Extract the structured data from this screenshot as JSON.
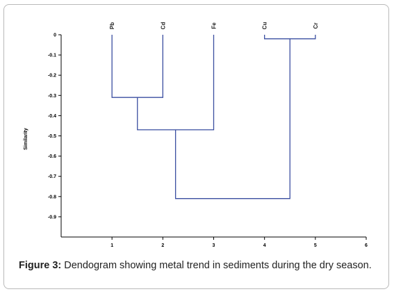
{
  "caption": {
    "label": "Figure 3:",
    "text": "Dendogram showing metal trend in sediments during the dry season."
  },
  "chart_data": {
    "type": "dendrogram",
    "ylabel": "Similarity",
    "leaves": [
      "Pb",
      "Cd",
      "Fe",
      "Cu",
      "Cr"
    ],
    "x_ticks": [
      "1",
      "2",
      "3",
      "4",
      "5",
      "6"
    ],
    "y_ticks": [
      "0",
      "-0.1",
      "-0.2",
      "-0.3",
      "-0.4",
      "-0.5",
      "-0.6",
      "-0.7",
      "-0.8",
      "-0.9"
    ],
    "xlim": [
      0,
      6
    ],
    "ylim": [
      -1.0,
      0
    ],
    "merges": [
      {
        "left": 4,
        "right": 5,
        "height": -0.02
      },
      {
        "left": 1,
        "right": 2,
        "height": -0.31
      },
      {
        "left": 1.5,
        "right": 3,
        "height": -0.47
      },
      {
        "left": 2.25,
        "right": 4.5,
        "height": -0.81
      }
    ],
    "grid": false,
    "colors": {
      "tree": "#3a4ea0",
      "axis": "#000000"
    }
  }
}
